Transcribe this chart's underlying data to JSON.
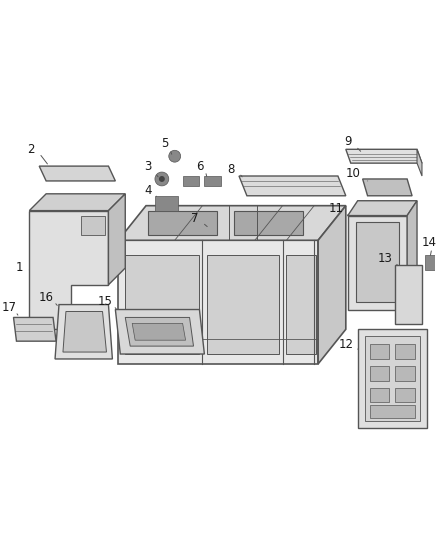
{
  "background_color": "#ffffff",
  "line_color": "#555555",
  "light_gray": "#c8c8c8",
  "mid_gray": "#b0b0b0",
  "dark_gray": "#888888",
  "figsize": [
    4.38,
    5.33
  ],
  "dpi": 100
}
